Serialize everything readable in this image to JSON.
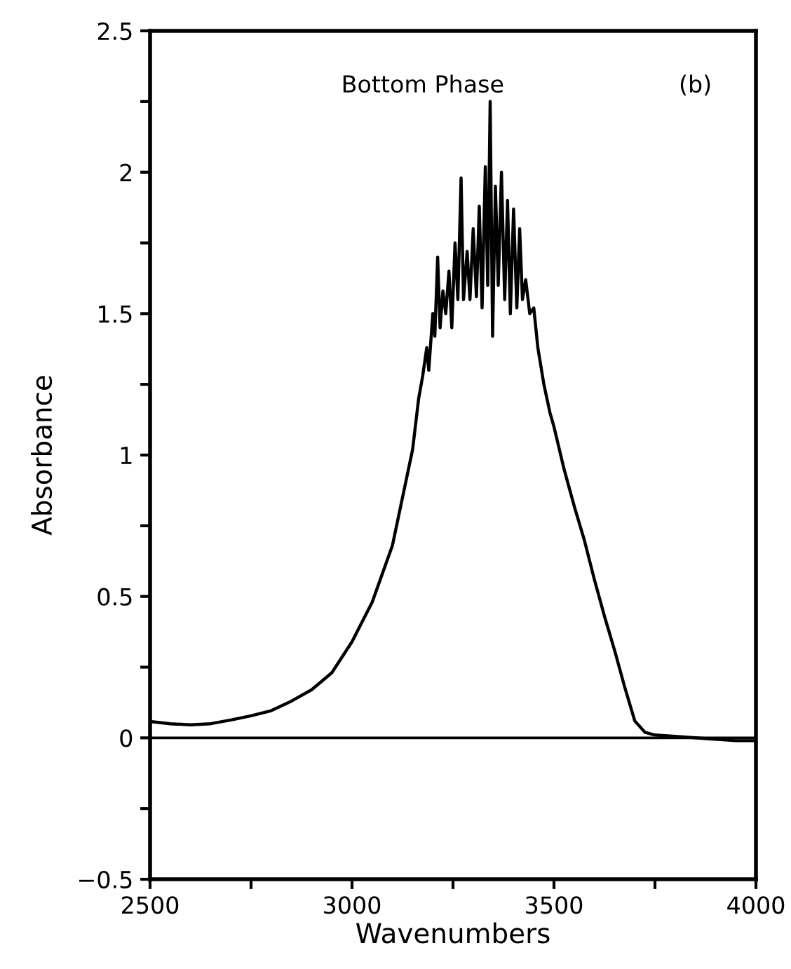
{
  "chart_data": {
    "type": "line",
    "xlabel": "Wavenumbers",
    "ylabel": "Absorbance",
    "annotations": [
      "Bottom Phase",
      "(b)"
    ],
    "xlim": [
      2500,
      4000
    ],
    "ylim": [
      -0.5,
      2.5
    ],
    "xticks": [
      2500,
      {
        "value": 2750,
        "label": null
      },
      3000,
      {
        "value": 3250,
        "label": null
      },
      3500,
      {
        "value": 3750,
        "label": null
      },
      4000
    ],
    "yticks": [
      {
        "value": -0.5,
        "label": "−0.5"
      },
      {
        "value": -0.25,
        "label": null
      },
      0,
      {
        "value": 0.25,
        "label": null
      },
      0.5,
      {
        "value": 0.75,
        "label": null
      },
      1,
      {
        "value": 1.25,
        "label": null
      },
      1.5,
      {
        "value": 1.75,
        "label": null
      },
      2,
      {
        "value": 2.25,
        "label": null
      },
      2.5
    ],
    "grid": false,
    "legend": false,
    "marker": "none",
    "line_style": "solid",
    "ref_lines": [
      {
        "axis": "y",
        "value": 0,
        "label": null,
        "color": "#000000"
      }
    ],
    "series": [
      {
        "color": "#000000",
        "x": [
          2500,
          2550,
          2600,
          2650,
          2700,
          2750,
          2800,
          2850,
          2900,
          2950,
          3000,
          3050,
          3100,
          3150,
          3165,
          3175,
          3185,
          3190,
          3200,
          3205,
          3212,
          3218,
          3225,
          3232,
          3240,
          3247,
          3255,
          3262,
          3270,
          3276,
          3285,
          3292,
          3300,
          3308,
          3315,
          3322,
          3330,
          3336,
          3342,
          3348,
          3355,
          3362,
          3370,
          3378,
          3385,
          3392,
          3400,
          3408,
          3415,
          3422,
          3430,
          3440,
          3450,
          3460,
          3475,
          3490,
          3500,
          3525,
          3550,
          3575,
          3600,
          3625,
          3650,
          3675,
          3700,
          3725,
          3750,
          3800,
          3850,
          3900,
          3950,
          4000
        ],
        "values": [
          0.058,
          0.05,
          0.046,
          0.05,
          0.063,
          0.078,
          0.096,
          0.13,
          0.17,
          0.23,
          0.34,
          0.48,
          0.68,
          1.02,
          1.2,
          1.28,
          1.38,
          1.3,
          1.5,
          1.42,
          1.7,
          1.45,
          1.58,
          1.5,
          1.65,
          1.45,
          1.75,
          1.55,
          1.98,
          1.55,
          1.72,
          1.55,
          1.8,
          1.56,
          1.88,
          1.52,
          2.02,
          1.6,
          2.25,
          1.42,
          1.95,
          1.6,
          2.0,
          1.55,
          1.9,
          1.5,
          1.87,
          1.52,
          1.8,
          1.55,
          1.62,
          1.5,
          1.52,
          1.38,
          1.25,
          1.15,
          1.1,
          0.95,
          0.82,
          0.7,
          0.56,
          0.43,
          0.31,
          0.18,
          0.06,
          0.02,
          0.01,
          0.005,
          0.0,
          -0.005,
          -0.01,
          -0.01
        ]
      }
    ]
  }
}
